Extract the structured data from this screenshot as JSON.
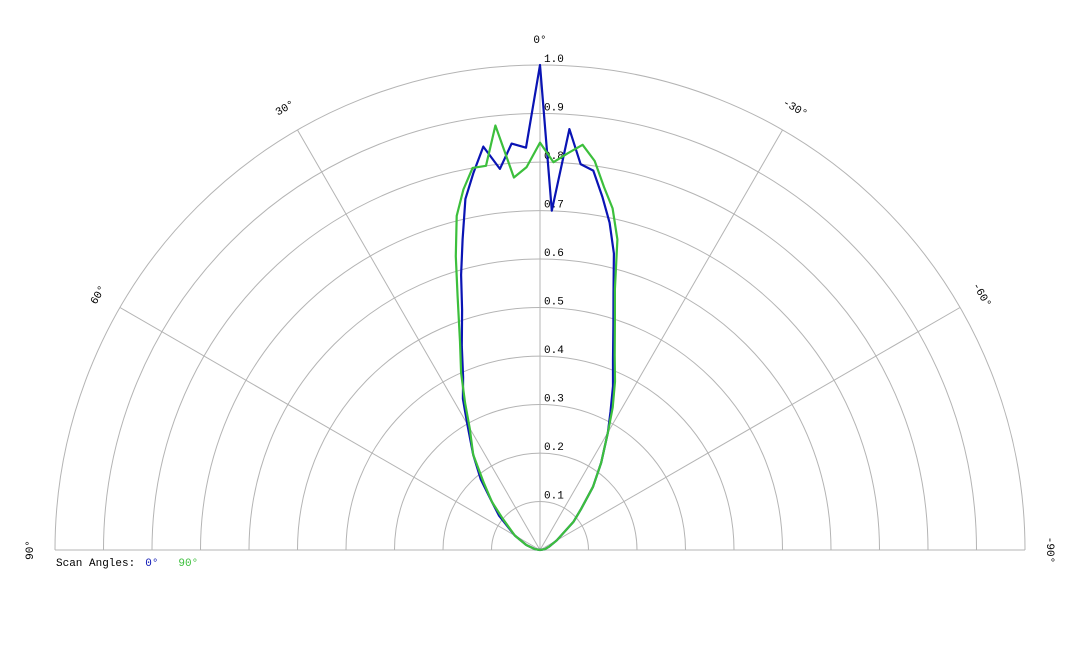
{
  "chart_data": {
    "type": "polar",
    "x": [
      -90,
      -80,
      -70,
      -60,
      -50,
      -45,
      -40,
      -35,
      -30,
      -27,
      -24,
      -21,
      -18,
      -16,
      -14,
      -12,
      -10,
      -8,
      -6,
      -4,
      -2,
      0,
      2,
      4,
      6,
      8,
      10,
      12,
      14,
      16,
      18,
      21,
      24,
      27,
      30,
      35,
      40,
      45,
      50,
      60,
      70,
      80,
      90
    ],
    "series": [
      {
        "name": "0°",
        "color": "#0a14b4",
        "values": [
          0,
          0.01,
          0.02,
          0.04,
          0.09,
          0.12,
          0.17,
          0.22,
          0.28,
          0.32,
          0.37,
          0.42,
          0.49,
          0.55,
          0.63,
          0.69,
          0.74,
          0.79,
          0.8,
          0.87,
          0.7,
          1.0,
          0.83,
          0.84,
          0.79,
          0.84,
          0.79,
          0.74,
          0.66,
          0.59,
          0.52,
          0.45,
          0.39,
          0.35,
          0.3,
          0.24,
          0.19,
          0.14,
          0.11,
          0.06,
          0.03,
          0.01,
          0
        ]
      },
      {
        "name": "90°",
        "color": "#3cbf3c",
        "values": [
          0,
          0.01,
          0.02,
          0.04,
          0.09,
          0.12,
          0.17,
          0.22,
          0.28,
          0.33,
          0.38,
          0.43,
          0.5,
          0.56,
          0.66,
          0.72,
          0.76,
          0.81,
          0.84,
          0.82,
          0.8,
          0.84,
          0.79,
          0.77,
          0.88,
          0.8,
          0.8,
          0.76,
          0.71,
          0.63,
          0.55,
          0.46,
          0.4,
          0.34,
          0.29,
          0.24,
          0.18,
          0.14,
          0.1,
          0.06,
          0.03,
          0.01,
          0
        ]
      }
    ],
    "rlim": [
      0,
      1
    ],
    "rticks": [
      0.1,
      0.2,
      0.3,
      0.4,
      0.5,
      0.6,
      0.7,
      0.8,
      0.9,
      {
        "value": 1,
        "label": "1.0"
      }
    ],
    "xticks": [
      {
        "value": 90,
        "label": "90°"
      },
      {
        "value": 60,
        "label": "60°"
      },
      {
        "value": 30,
        "label": "30°"
      },
      {
        "value": 0,
        "label": "0°"
      },
      {
        "value": -30,
        "label": "-30°"
      },
      {
        "value": -60,
        "label": "-60°"
      },
      {
        "value": -90,
        "label": "-90°"
      }
    ],
    "legend_title": "Scan Angles:",
    "legend": "bottom-left"
  }
}
